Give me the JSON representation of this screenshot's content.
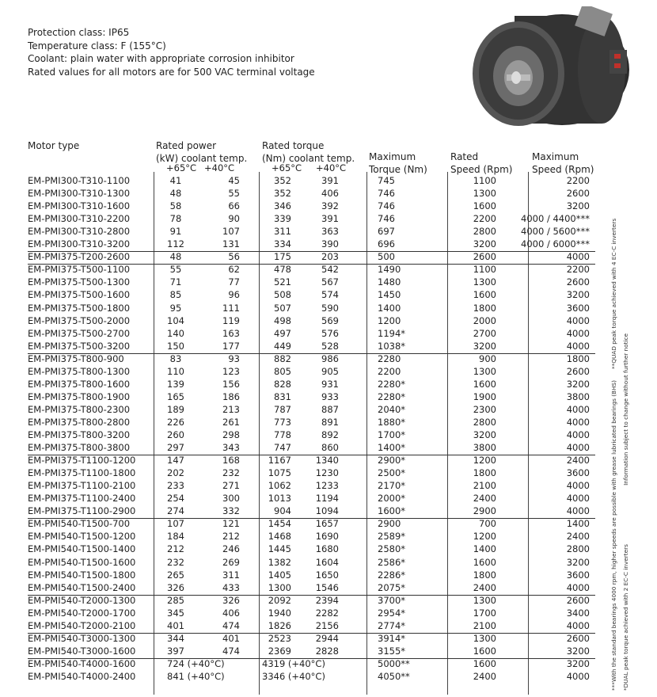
{
  "intro": [
    "Protection class: IP65",
    "Temperature class: F (155°C)",
    "Coolant: plain water with appropriate corrosion inhibitor",
    "Rated values for all motors are for 500 VAC terminal voltage"
  ],
  "headers": {
    "motor_type": "Motor type",
    "rated_power_1": "Rated power",
    "rated_power_2": "(kW) coolant temp.",
    "rated_torque_1": "Rated torque",
    "rated_torque_2": "(Nm) coolant temp.",
    "max_torque_1": "Maximum",
    "max_torque_2": "Torque (Nm)",
    "rated_speed_1": "Rated",
    "rated_speed_2": "Speed (Rpm)",
    "max_speed_1": "Maximum",
    "max_speed_2": "Speed (Rpm)",
    "t65": "+65°C",
    "t40": "+40°C"
  },
  "groups": [
    [
      [
        "EM-PMI300-T310-1100",
        "41",
        "45",
        "352",
        "391",
        "745",
        "1100",
        "2200"
      ],
      [
        "EM-PMI300-T310-1300",
        "48",
        "55",
        "352",
        "406",
        "746",
        "1300",
        "2600"
      ],
      [
        "EM-PMI300-T310-1600",
        "58",
        "66",
        "346",
        "392",
        "746",
        "1600",
        "3200"
      ],
      [
        "EM-PMI300-T310-2200",
        "78",
        "90",
        "339",
        "391",
        "746",
        "2200",
        "4000 / 4400***"
      ],
      [
        "EM-PMI300-T310-2800",
        "91",
        "107",
        "311",
        "363",
        "697",
        "2800",
        "4000 / 5600***"
      ],
      [
        "EM-PMI300-T310-3200",
        "112",
        "131",
        "334",
        "390",
        "696",
        "3200",
        "4000 / 6000***"
      ]
    ],
    [
      [
        "EM-PMI375-T200-2600",
        "48",
        "56",
        "175",
        "203",
        "500",
        "2600",
        "4000"
      ]
    ],
    [
      [
        "EM-PMI375-T500-1100",
        "55",
        "62",
        "478",
        "542",
        "1490",
        "1100",
        "2200"
      ],
      [
        "EM-PMI375-T500-1300",
        "71",
        "77",
        "521",
        "567",
        "1480",
        "1300",
        "2600"
      ],
      [
        "EM-PMI375-T500-1600",
        "85",
        "96",
        "508",
        "574",
        "1450",
        "1600",
        "3200"
      ],
      [
        "EM-PMI375-T500-1800",
        "95",
        "111",
        "507",
        "590",
        "1400",
        "1800",
        "3600"
      ],
      [
        "EM-PMI375-T500-2000",
        "104",
        "119",
        "498",
        "569",
        "1200",
        "2000",
        "4000"
      ],
      [
        "EM-PMI375-T500-2700",
        "140",
        "163",
        "497",
        "576",
        "1194*",
        "2700",
        "4000"
      ],
      [
        "EM-PMI375-T500-3200",
        "150",
        "177",
        "449",
        "528",
        "1038*",
        "3200",
        "4000"
      ]
    ],
    [
      [
        "EM-PMI375-T800-900",
        "83",
        "93",
        "882",
        "986",
        "2280",
        "900",
        "1800"
      ],
      [
        "EM-PMI375-T800-1300",
        "110",
        "123",
        "805",
        "905",
        "2200",
        "1300",
        "2600"
      ],
      [
        "EM-PMI375-T800-1600",
        "139",
        "156",
        "828",
        "931",
        "2280*",
        "1600",
        "3200"
      ],
      [
        "EM-PMI375-T800-1900",
        "165",
        "186",
        "831",
        "933",
        "2280*",
        "1900",
        "3800"
      ],
      [
        "EM-PMI375-T800-2300",
        "189",
        "213",
        "787",
        "887",
        "2040*",
        "2300",
        "4000"
      ],
      [
        "EM-PMI375-T800-2800",
        "226",
        "261",
        "773",
        "891",
        "1880*",
        "2800",
        "4000"
      ],
      [
        "EM-PMI375-T800-3200",
        "260",
        "298",
        "778",
        "892",
        "1700*",
        "3200",
        "4000"
      ],
      [
        "EM-PMI375-T800-3800",
        "297",
        "343",
        "747",
        "860",
        "1400*",
        "3800",
        "4000"
      ]
    ],
    [
      [
        "EM-PMI375-T1100-1200",
        "147",
        "168",
        "1167",
        "1340",
        "2900*",
        "1200",
        "2400"
      ],
      [
        "EM-PMI375-T1100-1800",
        "202",
        "232",
        "1075",
        "1230",
        "2500*",
        "1800",
        "3600"
      ],
      [
        "EM-PMI375-T1100-2100",
        "233",
        "271",
        "1062",
        "1233",
        "2170*",
        "2100",
        "4000"
      ],
      [
        "EM-PMI375-T1100-2400",
        "254",
        "300",
        "1013",
        "1194",
        "2000*",
        "2400",
        "4000"
      ],
      [
        "EM-PMI375-T1100-2900",
        "274",
        "332",
        "904",
        "1094",
        "1600*",
        "2900",
        "4000"
      ]
    ],
    [
      [
        "EM-PMI540-T1500-700",
        "107",
        "121",
        "1454",
        "1657",
        "2900",
        "700",
        "1400"
      ],
      [
        "EM-PMI540-T1500-1200",
        "184",
        "212",
        "1468",
        "1690",
        "2589*",
        "1200",
        "2400"
      ],
      [
        "EM-PMI540-T1500-1400",
        "212",
        "246",
        "1445",
        "1680",
        "2580*",
        "1400",
        "2800"
      ],
      [
        "EM-PMI540-T1500-1600",
        "232",
        "269",
        "1382",
        "1604",
        "2586*",
        "1600",
        "3200"
      ],
      [
        "EM-PMI540-T1500-1800",
        "265",
        "311",
        "1405",
        "1650",
        "2286*",
        "1800",
        "3600"
      ],
      [
        "EM-PMI540-T1500-2400",
        "326",
        "433",
        "1300",
        "1546",
        "2075*",
        "2400",
        "4000"
      ]
    ],
    [
      [
        "EM-PMI540-T2000-1300",
        "285",
        "326",
        "2092",
        "2394",
        "3700*",
        "1300",
        "2600"
      ],
      [
        "EM-PMI540-T2000-1700",
        "345",
        "406",
        "1940",
        "2282",
        "2954*",
        "1700",
        "3400"
      ],
      [
        "EM-PMI540-T2000-2100",
        "401",
        "474",
        "1826",
        "2156",
        "2774*",
        "2100",
        "4000"
      ]
    ],
    [
      [
        "EM-PMI540-T3000-1300",
        "344",
        "401",
        "2523",
        "2944",
        "3914*",
        "1300",
        "2600"
      ],
      [
        "EM-PMI540-T3000-1600",
        "397",
        "474",
        "2369",
        "2828",
        "3155*",
        "1600",
        "3200"
      ]
    ],
    [
      [
        "EM-PMI540-T4000-1600",
        "724 (+40°C)",
        "",
        "4319 (+40°C)",
        "",
        "5000**",
        "1600",
        "3200"
      ],
      [
        "EM-PMI540-T4000-2400",
        "841 (+40°C)",
        "",
        "3346 (+40°C)",
        "",
        "4050**",
        "2400",
        "4000"
      ]
    ]
  ],
  "notes": {
    "col1": "***With the standard bearings 4000 rpm, higher speeds are possible with grease lubricated bearings (BHS)",
    "col1b": "**QUAD peak torque achieved with 4 EC-C inverters",
    "col2": "*DUAL peak torque achieved with 2 EC-C inverters",
    "col2b": "Information subject to change without further notice"
  }
}
